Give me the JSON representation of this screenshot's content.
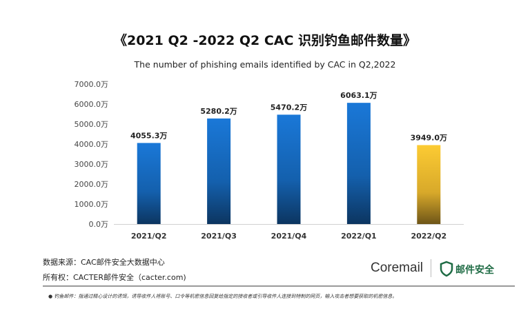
{
  "chart_data": {
    "type": "bar",
    "title": "《2021 Q2 -2022 Q2 CAC 识别钓鱼邮件数量》",
    "subtitle": "The number of phishing emails identified by CAC in Q2,2022",
    "categories": [
      "2021/Q2",
      "2021/Q3",
      "2021/Q4",
      "2022/Q1",
      "2022/Q2"
    ],
    "values": [
      4055.3,
      5280.2,
      5470.2,
      6063.1,
      3949.0
    ],
    "data_labels": [
      "4055.3万",
      "5280.2万",
      "5470.2万",
      "6063.1万",
      "3949.0万"
    ],
    "unit": "万",
    "ylim": [
      0,
      7000
    ],
    "yticks": [
      "0.0万",
      "1000.0万",
      "2000.0万",
      "3000.0万",
      "4000.0万",
      "5000.0万",
      "6000.0万",
      "7000.0万"
    ],
    "grid": false,
    "colors": {
      "default": "#1a6fc9",
      "highlight": "#f5c431"
    }
  },
  "footer": {
    "source": "数据来源：CAC邮件安全大数据中心",
    "copyright": "所有权：CACTER邮件安全（cacter.com)",
    "logo_text": "Coremail",
    "brand_text": "邮件安全",
    "note": "钓鱼邮件：指通过精心设计的诱饵，诱导收件人将账号、口令等机密信息回复给指定的接收者或引导收件人连接到特制的网页，输入攻击者想要获取的机密信息。"
  }
}
